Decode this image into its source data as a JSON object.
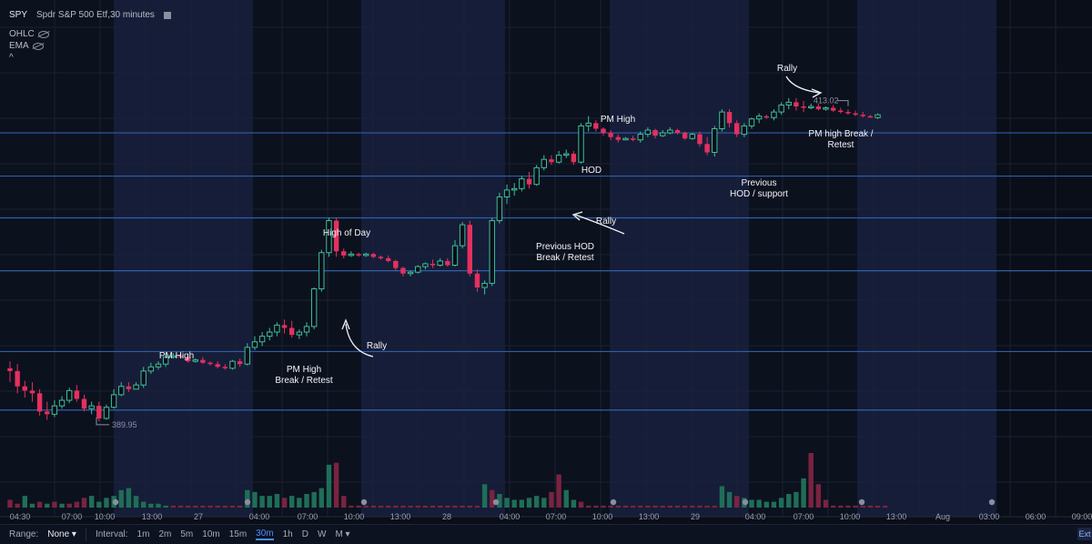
{
  "legend": {
    "symbol": "SPY",
    "description": "Spdr S&P 500 Etf,30 minutes",
    "items": [
      "OHLC",
      "EMA"
    ],
    "collapse": "^"
  },
  "toolbar": {
    "range_label": "Range:",
    "range_value": "None",
    "interval_label": "Interval:",
    "intervals": [
      "1m",
      "2m",
      "5m",
      "10m",
      "15m",
      "30m",
      "1h",
      "D",
      "W",
      "M"
    ],
    "active_interval": "30m",
    "ext_label": "Ext"
  },
  "chart_data": {
    "type": "candlestick",
    "ylim": [
      387,
      416
    ],
    "x_tick_labels": [
      "04:30",
      "07:00",
      "10:00",
      "13:00",
      "27",
      "04:00",
      "07:00",
      "10:00",
      "13:00",
      "28",
      "04:00",
      "07:00",
      "10:00",
      "13:00",
      "29",
      "04:00",
      "07:00",
      "10:00",
      "13:00",
      "Aug",
      "03:00",
      "06:00",
      "09:00"
    ],
    "horizontal_levels": [
      391.0,
      395.2,
      401.0,
      404.8,
      407.8,
      410.9
    ],
    "price_markers": {
      "low": 389.95,
      "high": 413.02
    },
    "ohlc": [
      [
        394.0,
        394.5,
        393.0,
        393.8
      ],
      [
        393.8,
        394.3,
        392.2,
        392.7
      ],
      [
        392.7,
        393.1,
        391.9,
        392.4
      ],
      [
        392.4,
        393.0,
        391.6,
        392.2
      ],
      [
        392.2,
        392.5,
        390.6,
        390.9
      ],
      [
        390.9,
        391.6,
        390.3,
        390.7
      ],
      [
        390.7,
        391.7,
        390.5,
        391.3
      ],
      [
        391.3,
        392.0,
        391.1,
        391.7
      ],
      [
        391.7,
        392.6,
        391.5,
        392.4
      ],
      [
        392.4,
        392.8,
        391.6,
        391.8
      ],
      [
        391.8,
        392.1,
        390.9,
        391.1
      ],
      [
        391.1,
        391.6,
        390.7,
        391.3
      ],
      [
        391.3,
        391.6,
        390.2,
        390.4
      ],
      [
        390.4,
        391.4,
        390.3,
        391.2
      ],
      [
        391.2,
        392.5,
        391.1,
        392.1
      ],
      [
        392.1,
        393.0,
        392.0,
        392.7
      ],
      [
        392.7,
        393.0,
        392.3,
        392.5
      ],
      [
        392.5,
        393.0,
        392.5,
        392.8
      ],
      [
        392.8,
        394.1,
        392.6,
        393.8
      ],
      [
        393.8,
        394.4,
        393.6,
        394.1
      ],
      [
        394.1,
        394.5,
        393.9,
        394.3
      ],
      [
        394.3,
        395.1,
        394.1,
        394.8
      ],
      [
        394.8,
        395.1,
        394.7,
        394.9
      ],
      [
        394.9,
        395.0,
        394.7,
        394.8
      ],
      [
        394.8,
        395.0,
        394.4,
        394.5
      ],
      [
        394.5,
        394.7,
        394.4,
        394.6
      ],
      [
        394.6,
        394.8,
        394.3,
        394.4
      ],
      [
        394.4,
        394.5,
        394.2,
        394.3
      ],
      [
        394.3,
        394.5,
        394.0,
        394.1
      ],
      [
        394.1,
        394.3,
        393.9,
        394.0
      ],
      [
        394.0,
        394.6,
        393.9,
        394.5
      ],
      [
        394.5,
        394.7,
        394.1,
        394.3
      ],
      [
        394.3,
        395.8,
        394.2,
        395.5
      ],
      [
        395.5,
        396.3,
        395.3,
        395.9
      ],
      [
        395.9,
        396.6,
        395.6,
        396.3
      ],
      [
        396.3,
        396.9,
        396.0,
        396.6
      ],
      [
        396.6,
        397.3,
        396.3,
        397.1
      ],
      [
        397.1,
        397.5,
        396.5,
        396.9
      ],
      [
        396.9,
        397.4,
        396.2,
        396.4
      ],
      [
        396.4,
        396.8,
        396.1,
        396.6
      ],
      [
        396.6,
        397.3,
        396.3,
        397.0
      ],
      [
        397.0,
        399.8,
        396.8,
        399.7
      ],
      [
        399.7,
        402.5,
        399.5,
        402.3
      ],
      [
        402.3,
        404.8,
        402.0,
        404.6
      ],
      [
        404.6,
        404.8,
        402.0,
        402.4
      ],
      [
        402.4,
        402.6,
        401.9,
        402.1
      ],
      [
        402.1,
        402.4,
        402.0,
        402.2
      ],
      [
        402.2,
        402.3,
        402.0,
        402.1
      ],
      [
        402.1,
        402.3,
        402.0,
        402.2
      ],
      [
        402.2,
        402.3,
        401.9,
        402.0
      ],
      [
        402.0,
        402.1,
        401.8,
        401.9
      ],
      [
        401.9,
        402.1,
        401.6,
        401.7
      ],
      [
        401.7,
        401.8,
        401.0,
        401.2
      ],
      [
        401.2,
        401.3,
        400.6,
        400.8
      ],
      [
        400.8,
        401.0,
        400.6,
        400.9
      ],
      [
        400.9,
        401.4,
        400.8,
        401.3
      ],
      [
        401.3,
        401.6,
        401.1,
        401.5
      ],
      [
        401.5,
        401.8,
        401.2,
        401.4
      ],
      [
        401.4,
        401.9,
        401.3,
        401.7
      ],
      [
        401.7,
        401.9,
        401.3,
        401.4
      ],
      [
        401.4,
        403.2,
        401.3,
        402.8
      ],
      [
        402.8,
        404.5,
        402.6,
        404.3
      ],
      [
        404.3,
        404.6,
        400.6,
        400.8
      ],
      [
        400.8,
        401.1,
        399.5,
        399.8
      ],
      [
        399.8,
        400.3,
        399.3,
        400.1
      ],
      [
        400.1,
        404.8,
        399.9,
        404.6
      ],
      [
        404.6,
        406.6,
        404.4,
        406.3
      ],
      [
        406.3,
        407.2,
        405.8,
        406.8
      ],
      [
        406.8,
        407.3,
        406.4,
        406.9
      ],
      [
        406.9,
        407.8,
        406.7,
        407.6
      ],
      [
        407.6,
        408.1,
        406.9,
        407.2
      ],
      [
        407.2,
        408.6,
        407.1,
        408.4
      ],
      [
        408.4,
        409.3,
        408.2,
        409.0
      ],
      [
        409.0,
        409.3,
        408.6,
        408.8
      ],
      [
        408.8,
        409.6,
        408.7,
        409.3
      ],
      [
        409.3,
        409.7,
        409.1,
        409.4
      ],
      [
        409.4,
        409.6,
        408.6,
        408.8
      ],
      [
        408.8,
        411.6,
        408.7,
        411.4
      ],
      [
        411.4,
        412.1,
        411.0,
        411.6
      ],
      [
        411.6,
        411.8,
        411.0,
        411.2
      ],
      [
        411.2,
        411.3,
        410.7,
        410.9
      ],
      [
        410.9,
        411.1,
        410.4,
        410.6
      ],
      [
        410.6,
        410.8,
        410.2,
        410.4
      ],
      [
        410.4,
        410.6,
        410.4,
        410.5
      ],
      [
        410.5,
        410.7,
        410.3,
        410.4
      ],
      [
        410.4,
        411.0,
        410.2,
        410.8
      ],
      [
        410.8,
        411.3,
        410.6,
        411.1
      ],
      [
        411.1,
        411.2,
        410.5,
        410.7
      ],
      [
        410.7,
        411.1,
        410.6,
        410.9
      ],
      [
        410.9,
        411.3,
        410.8,
        411.1
      ],
      [
        411.1,
        411.2,
        410.8,
        410.9
      ],
      [
        410.9,
        411.0,
        410.4,
        410.5
      ],
      [
        410.5,
        410.9,
        410.4,
        410.8
      ],
      [
        410.8,
        411.0,
        409.9,
        410.1
      ],
      [
        410.1,
        410.6,
        409.3,
        409.5
      ],
      [
        409.5,
        411.4,
        409.2,
        411.2
      ],
      [
        411.2,
        412.6,
        411.0,
        412.4
      ],
      [
        412.4,
        412.6,
        411.3,
        411.6
      ],
      [
        411.6,
        411.8,
        410.6,
        410.8
      ],
      [
        410.8,
        411.6,
        410.6,
        411.4
      ],
      [
        411.4,
        412.0,
        411.2,
        411.9
      ],
      [
        411.9,
        412.3,
        411.6,
        412.1
      ],
      [
        412.1,
        412.2,
        411.9,
        412.0
      ],
      [
        412.0,
        412.6,
        411.8,
        412.4
      ],
      [
        412.4,
        413.1,
        412.2,
        412.9
      ],
      [
        412.9,
        413.4,
        412.6,
        413.1
      ],
      [
        413.1,
        413.4,
        412.5,
        412.8
      ],
      [
        412.8,
        413.2,
        412.4,
        412.7
      ],
      [
        412.7,
        413.0,
        412.6,
        412.8
      ],
      [
        412.8,
        413.0,
        412.5,
        412.6
      ],
      [
        412.6,
        412.8,
        412.5,
        412.7
      ],
      [
        412.7,
        412.9,
        412.4,
        412.5
      ],
      [
        412.5,
        412.7,
        412.3,
        412.4
      ],
      [
        412.4,
        412.6,
        412.2,
        412.3
      ],
      [
        412.3,
        412.5,
        412.1,
        412.2
      ],
      [
        412.2,
        412.4,
        412.0,
        412.1
      ],
      [
        412.1,
        412.2,
        412.0,
        412.0
      ],
      [
        412.0,
        412.3,
        411.9,
        412.2
      ]
    ],
    "volume": [
      [
        4,
        0
      ],
      [
        2,
        0
      ],
      [
        6,
        1
      ],
      [
        2,
        1
      ],
      [
        3,
        0
      ],
      [
        2,
        1
      ],
      [
        3,
        0
      ],
      [
        2,
        1
      ],
      [
        2,
        0
      ],
      [
        3,
        0
      ],
      [
        5,
        0
      ],
      [
        6,
        1
      ],
      [
        3,
        1
      ],
      [
        5,
        1
      ],
      [
        6,
        1
      ],
      [
        9,
        1
      ],
      [
        10,
        1
      ],
      [
        6,
        1
      ],
      [
        3,
        1
      ],
      [
        2,
        1
      ],
      [
        2,
        1
      ],
      [
        1,
        1
      ],
      [
        1,
        0
      ],
      [
        1,
        0
      ],
      [
        1,
        0
      ],
      [
        1,
        0
      ],
      [
        1,
        0
      ],
      [
        1,
        0
      ],
      [
        1,
        0
      ],
      [
        1,
        0
      ],
      [
        1,
        0
      ],
      [
        1,
        0
      ],
      [
        9,
        1
      ],
      [
        8,
        1
      ],
      [
        6,
        1
      ],
      [
        6,
        1
      ],
      [
        7,
        1
      ],
      [
        5,
        0
      ],
      [
        6,
        1
      ],
      [
        5,
        1
      ],
      [
        7,
        1
      ],
      [
        8,
        1
      ],
      [
        10,
        1
      ],
      [
        22,
        1
      ],
      [
        23,
        0
      ],
      [
        6,
        0
      ],
      [
        1,
        0
      ],
      [
        1,
        0
      ],
      [
        1,
        0
      ],
      [
        1,
        0
      ],
      [
        1,
        0
      ],
      [
        1,
        0
      ],
      [
        1,
        0
      ],
      [
        1,
        0
      ],
      [
        1,
        0
      ],
      [
        1,
        0
      ],
      [
        1,
        0
      ],
      [
        1,
        0
      ],
      [
        1,
        0
      ],
      [
        1,
        0
      ],
      [
        1,
        0
      ],
      [
        1,
        0
      ],
      [
        1,
        0
      ],
      [
        1,
        0
      ],
      [
        12,
        1
      ],
      [
        9,
        0
      ],
      [
        7,
        1
      ],
      [
        5,
        1
      ],
      [
        4,
        1
      ],
      [
        4,
        1
      ],
      [
        5,
        1
      ],
      [
        6,
        1
      ],
      [
        5,
        1
      ],
      [
        8,
        0
      ],
      [
        17,
        0
      ],
      [
        9,
        1
      ],
      [
        4,
        1
      ],
      [
        3,
        0
      ],
      [
        1,
        0
      ],
      [
        1,
        0
      ],
      [
        1,
        0
      ],
      [
        1,
        0
      ],
      [
        1,
        0
      ],
      [
        1,
        0
      ],
      [
        1,
        0
      ],
      [
        1,
        0
      ],
      [
        1,
        0
      ],
      [
        1,
        0
      ],
      [
        1,
        0
      ],
      [
        1,
        0
      ],
      [
        1,
        0
      ],
      [
        1,
        0
      ],
      [
        1,
        0
      ],
      [
        1,
        0
      ],
      [
        1,
        0
      ],
      [
        1,
        0
      ],
      [
        11,
        1
      ],
      [
        8,
        1
      ],
      [
        6,
        0
      ],
      [
        5,
        1
      ],
      [
        4,
        1
      ],
      [
        4,
        1
      ],
      [
        3,
        1
      ],
      [
        3,
        1
      ],
      [
        5,
        1
      ],
      [
        7,
        1
      ],
      [
        8,
        1
      ],
      [
        15,
        1
      ],
      [
        28,
        0
      ],
      [
        12,
        0
      ],
      [
        4,
        0
      ],
      [
        1,
        0
      ],
      [
        1,
        0
      ],
      [
        1,
        0
      ],
      [
        1,
        0
      ],
      [
        1,
        0
      ],
      [
        1,
        0
      ],
      [
        1,
        0
      ],
      [
        1,
        0
      ]
    ],
    "annotations": [
      "PM High",
      "PM High\nBreak / Retest",
      "Rally",
      "High of Day",
      "Previous HOD\nBreak / Retest",
      "Rally",
      "HOD",
      "PM High",
      "Previous\nHOD / support",
      "Rally",
      "PM high Break /\nRetest"
    ]
  }
}
